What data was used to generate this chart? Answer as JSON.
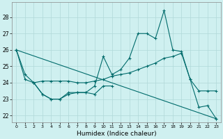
{
  "xlabel": "Humidex (Indice chaleur)",
  "bg_color": "#cff0f0",
  "grid_color": "#b0d8d8",
  "line_color": "#006b6b",
  "xlim": [
    -0.5,
    23.5
  ],
  "ylim": [
    21.6,
    28.9
  ],
  "yticks": [
    22,
    23,
    24,
    25,
    26,
    27,
    28
  ],
  "xticks": [
    0,
    1,
    2,
    3,
    4,
    5,
    6,
    7,
    8,
    9,
    10,
    11,
    12,
    13,
    14,
    15,
    16,
    17,
    18,
    19,
    20,
    21,
    22,
    23
  ],
  "series": [
    {
      "x": [
        0,
        1,
        2,
        3,
        4,
        5,
        6,
        7,
        8,
        9,
        10,
        11,
        12,
        13,
        14,
        15,
        16,
        17,
        18,
        19,
        20,
        21,
        22,
        23
      ],
      "y": [
        26.0,
        24.5,
        24.0,
        23.3,
        23.0,
        23.0,
        23.3,
        23.4,
        23.4,
        23.8,
        25.6,
        24.5,
        24.8,
        25.5,
        27.0,
        27.0,
        26.7,
        28.4,
        26.0,
        25.9,
        24.2,
        22.5,
        22.6,
        21.8
      ]
    },
    {
      "x": [
        0,
        1,
        2,
        3,
        4,
        5,
        6,
        7,
        8,
        9,
        10,
        11,
        12,
        13,
        14,
        15,
        16,
        17,
        18,
        19,
        20,
        21,
        22,
        23
      ],
      "y": [
        26.0,
        24.2,
        24.0,
        24.1,
        24.1,
        24.1,
        24.1,
        24.0,
        24.0,
        24.1,
        24.2,
        24.4,
        24.5,
        24.6,
        24.8,
        25.0,
        25.2,
        25.5,
        25.6,
        25.8,
        24.2,
        23.5,
        23.5,
        23.5
      ]
    },
    {
      "x": [
        2,
        3,
        4,
        5,
        6,
        7,
        8,
        9,
        10,
        11
      ],
      "y": [
        24.0,
        23.3,
        23.0,
        23.0,
        23.4,
        23.4,
        23.4,
        23.3,
        23.8,
        23.8
      ]
    },
    {
      "x": [
        0,
        23
      ],
      "y": [
        26.0,
        21.8
      ]
    }
  ]
}
